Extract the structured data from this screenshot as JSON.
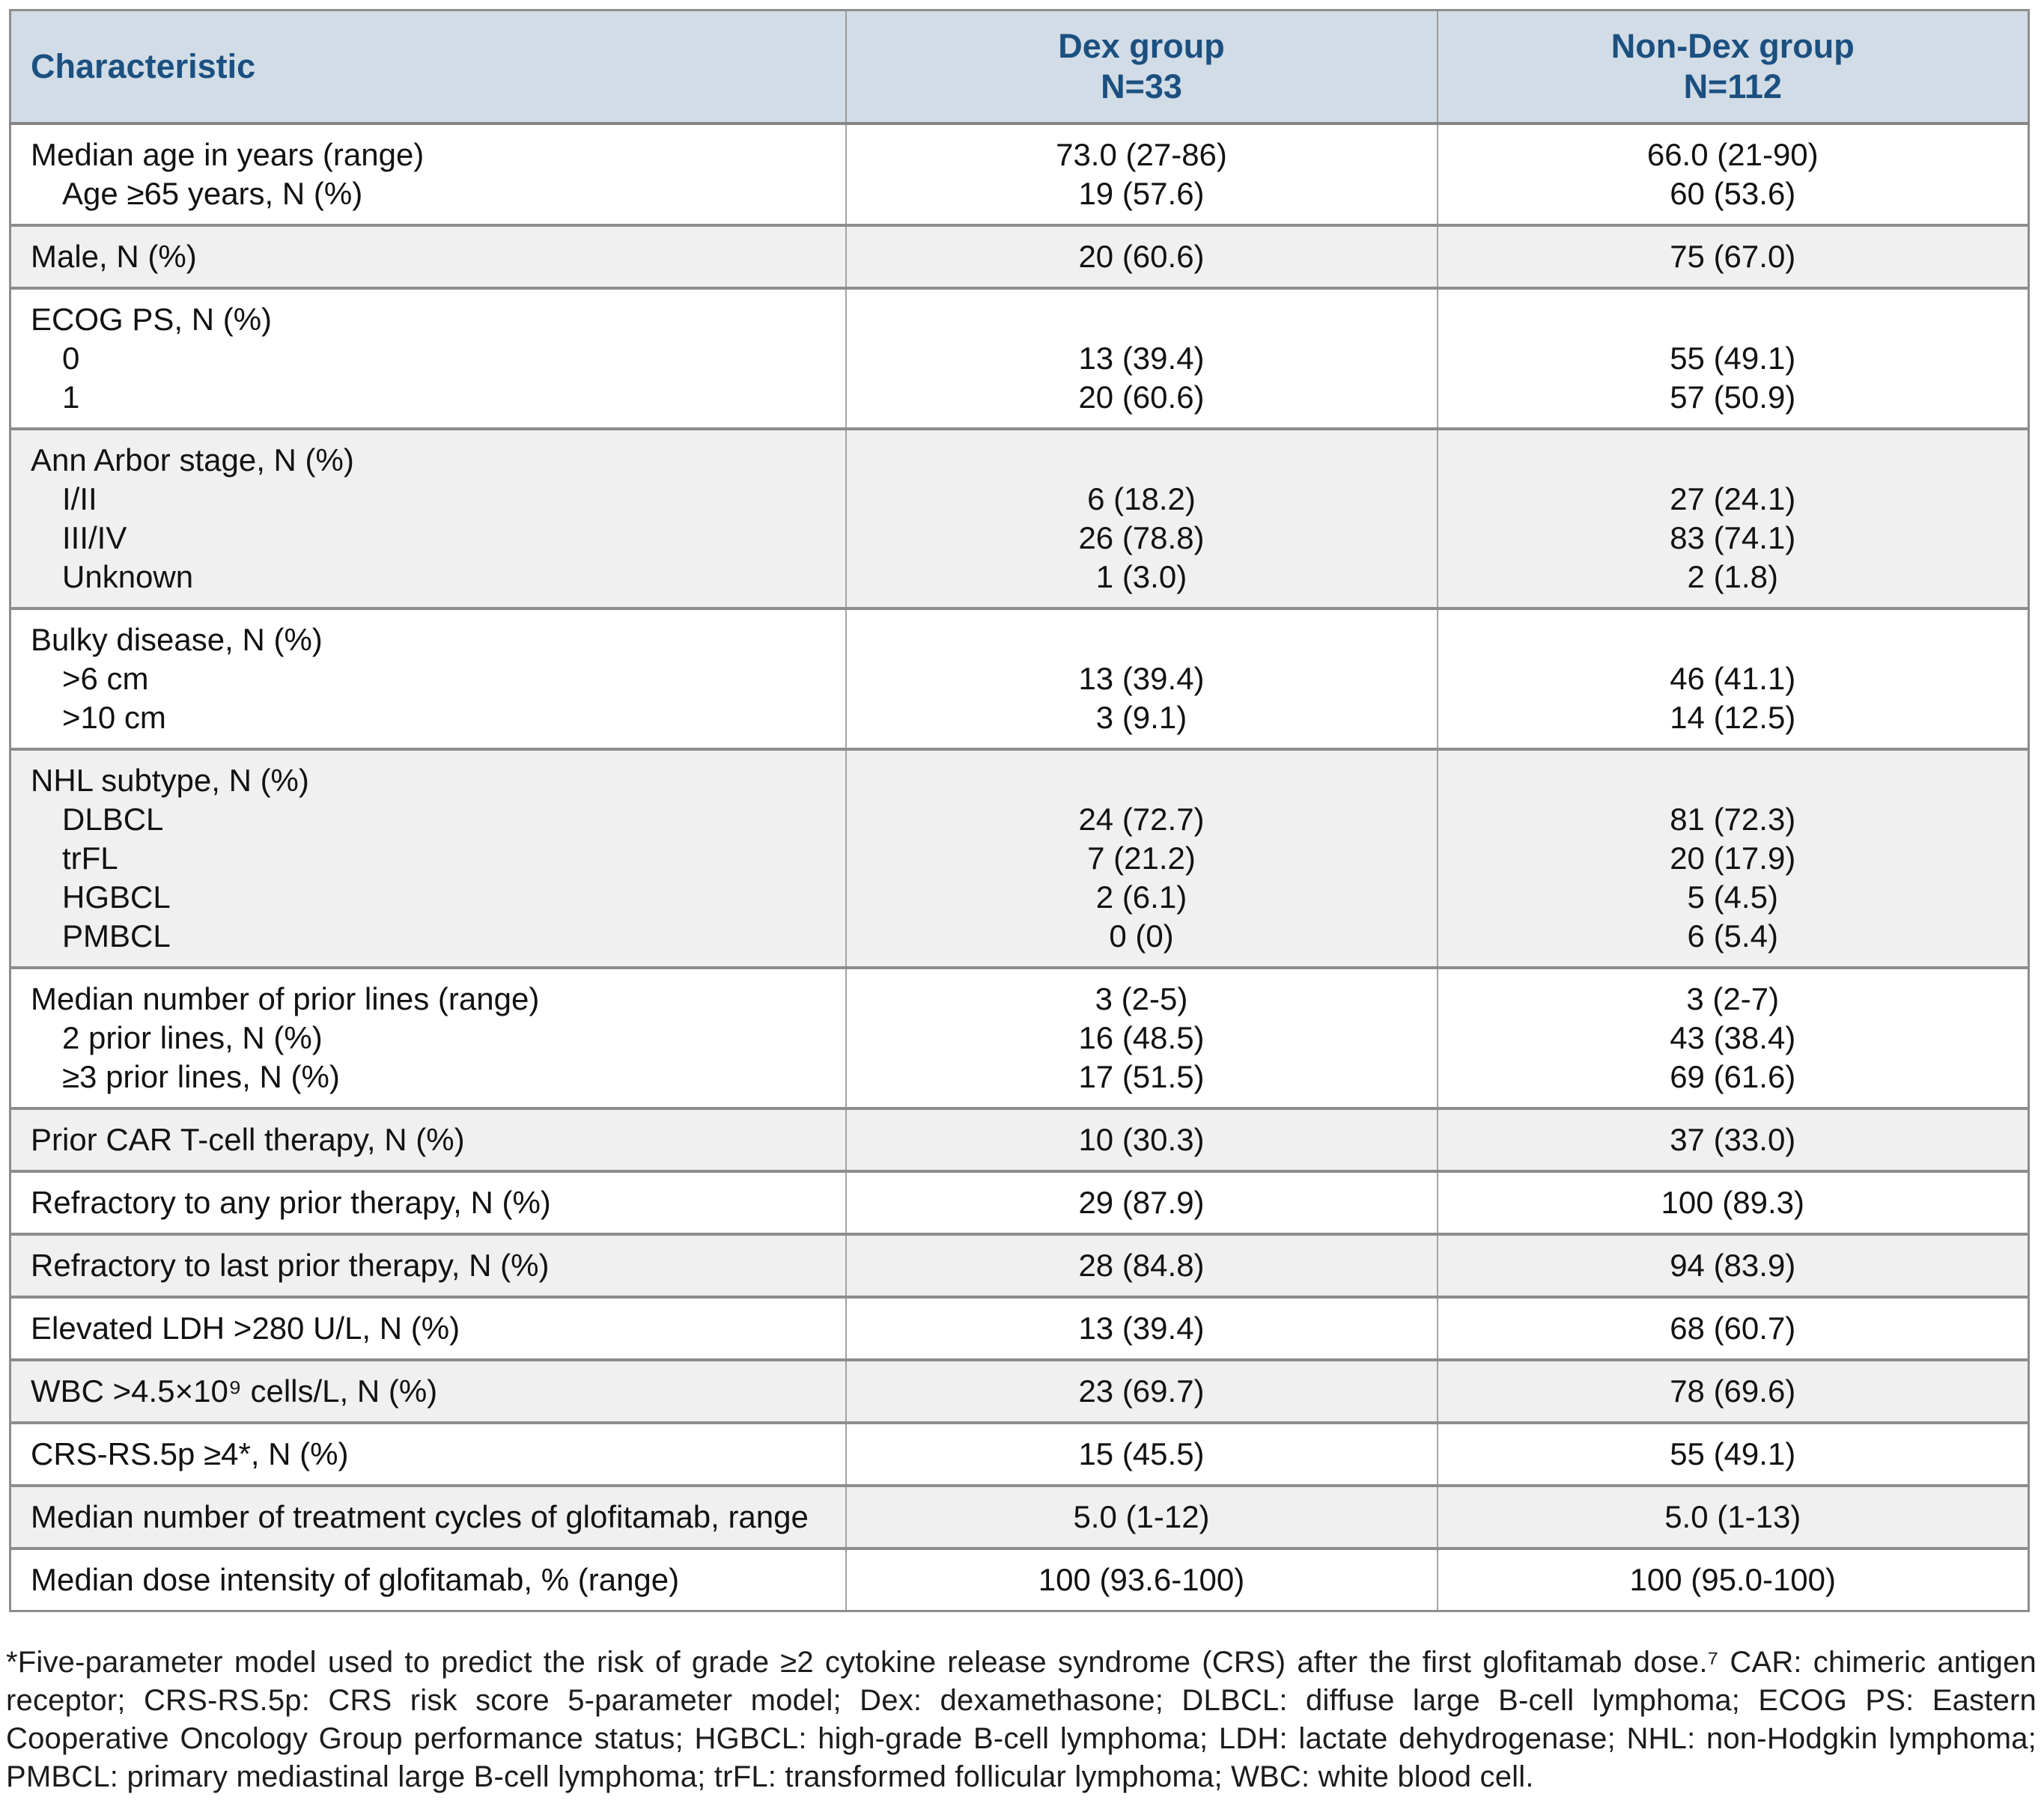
{
  "table": {
    "header": {
      "characteristic": "Characteristic",
      "dex_line1": "Dex group",
      "dex_line2": "N=33",
      "nondex_line1": "Non-Dex group",
      "nondex_line2": "N=112"
    },
    "rows": [
      {
        "shaded": false,
        "lines": [
          {
            "label": "Median age in years (range)",
            "indent": false,
            "dex": "73.0 (27-86)",
            "nondex": "66.0 (21-90)"
          },
          {
            "label": "Age ≥65 years, N (%)",
            "indent": true,
            "dex": "19 (57.6)",
            "nondex": "60 (53.6)"
          }
        ]
      },
      {
        "shaded": true,
        "lines": [
          {
            "label": "Male, N (%)",
            "indent": false,
            "dex": "20 (60.6)",
            "nondex": "75 (67.0)"
          }
        ]
      },
      {
        "shaded": false,
        "lines": [
          {
            "label": "ECOG PS, N (%)",
            "indent": false,
            "dex": "",
            "nondex": ""
          },
          {
            "label": "0",
            "indent": true,
            "dex": "13 (39.4)",
            "nondex": "55 (49.1)"
          },
          {
            "label": "1",
            "indent": true,
            "dex": "20 (60.6)",
            "nondex": "57 (50.9)"
          }
        ]
      },
      {
        "shaded": true,
        "lines": [
          {
            "label": "Ann Arbor stage, N (%)",
            "indent": false,
            "dex": "",
            "nondex": ""
          },
          {
            "label": "I/II",
            "indent": true,
            "dex": "6 (18.2)",
            "nondex": "27 (24.1)"
          },
          {
            "label": "III/IV",
            "indent": true,
            "dex": "26 (78.8)",
            "nondex": "83 (74.1)"
          },
          {
            "label": "Unknown",
            "indent": true,
            "dex": "1 (3.0)",
            "nondex": "2 (1.8)"
          }
        ]
      },
      {
        "shaded": false,
        "lines": [
          {
            "label": "Bulky disease, N (%)",
            "indent": false,
            "dex": "",
            "nondex": ""
          },
          {
            "label": ">6 cm",
            "indent": true,
            "dex": "13 (39.4)",
            "nondex": "46 (41.1)"
          },
          {
            "label": ">10 cm",
            "indent": true,
            "dex": "3 (9.1)",
            "nondex": "14 (12.5)"
          }
        ]
      },
      {
        "shaded": true,
        "lines": [
          {
            "label": "NHL subtype, N (%)",
            "indent": false,
            "dex": "",
            "nondex": ""
          },
          {
            "label": "DLBCL",
            "indent": true,
            "dex": "24 (72.7)",
            "nondex": "81 (72.3)"
          },
          {
            "label": "trFL",
            "indent": true,
            "dex": "7 (21.2)",
            "nondex": "20 (17.9)"
          },
          {
            "label": "HGBCL",
            "indent": true,
            "dex": "2 (6.1)",
            "nondex": "5 (4.5)"
          },
          {
            "label": "PMBCL",
            "indent": true,
            "dex": "0 (0)",
            "nondex": "6 (5.4)"
          }
        ]
      },
      {
        "shaded": false,
        "lines": [
          {
            "label": "Median number of prior lines (range)",
            "indent": false,
            "dex": "3 (2-5)",
            "nondex": "3 (2-7)"
          },
          {
            "label": "2 prior lines, N (%)",
            "indent": true,
            "dex": "16 (48.5)",
            "nondex": "43 (38.4)"
          },
          {
            "label": "≥3 prior lines, N (%)",
            "indent": true,
            "dex": "17 (51.5)",
            "nondex": "69 (61.6)"
          }
        ]
      },
      {
        "shaded": true,
        "lines": [
          {
            "label": "Prior CAR T-cell therapy, N (%)",
            "indent": false,
            "dex": "10 (30.3)",
            "nondex": "37 (33.0)"
          }
        ]
      },
      {
        "shaded": false,
        "lines": [
          {
            "label": "Refractory to any prior therapy, N (%)",
            "indent": false,
            "dex": "29 (87.9)",
            "nondex": "100 (89.3)"
          }
        ]
      },
      {
        "shaded": true,
        "lines": [
          {
            "label": "Refractory to last prior therapy, N (%)",
            "indent": false,
            "dex": "28 (84.8)",
            "nondex": "94 (83.9)"
          }
        ]
      },
      {
        "shaded": false,
        "lines": [
          {
            "label": "Elevated LDH >280 U/L, N (%)",
            "indent": false,
            "dex": "13 (39.4)",
            "nondex": "68 (60.7)"
          }
        ]
      },
      {
        "shaded": true,
        "lines": [
          {
            "label": "WBC >4.5×10⁹ cells/L, N (%)",
            "indent": false,
            "dex": "23 (69.7)",
            "nondex": "78 (69.6)"
          }
        ]
      },
      {
        "shaded": false,
        "lines": [
          {
            "label": "CRS-RS.5p ≥4*, N (%)",
            "indent": false,
            "dex": "15 (45.5)",
            "nondex": "55 (49.1)"
          }
        ]
      },
      {
        "shaded": true,
        "lines": [
          {
            "label": "Median number of treatment cycles of glofitamab, range",
            "indent": false,
            "dex": "5.0 (1-12)",
            "nondex": "5.0 (1-13)"
          }
        ]
      },
      {
        "shaded": false,
        "lines": [
          {
            "label": "Median dose intensity of glofitamab, % (range)",
            "indent": false,
            "dex": "100 (93.6-100)",
            "nondex": "100 (95.0-100)"
          }
        ]
      }
    ]
  },
  "footnote": {
    "text": "*Five-parameter model used to predict the risk of grade ≥2 cytokine release syndrome (CRS) after the first glofitamab dose.⁷ CAR: chimeric antigen receptor; CRS-RS.5p: CRS risk score 5-parameter model; Dex: dexamethasone; DLBCL: diffuse large B-cell lymphoma; ECOG PS: Eastern Cooperative Oncology Group performance status; HGBCL: high-grade B-cell lymphoma; LDH: lactate dehydrogenase; NHL: non-Hodgkin lymphoma; PMBCL: primary mediastinal large B-cell lymphoma; trFL: transformed follicular lymphoma; WBC: white blood cell."
  },
  "colors": {
    "header_background": "#d2dce6",
    "header_text": "#1b5080",
    "shaded_row_background": "#f0f0f0",
    "border": "#8d8d8d"
  }
}
